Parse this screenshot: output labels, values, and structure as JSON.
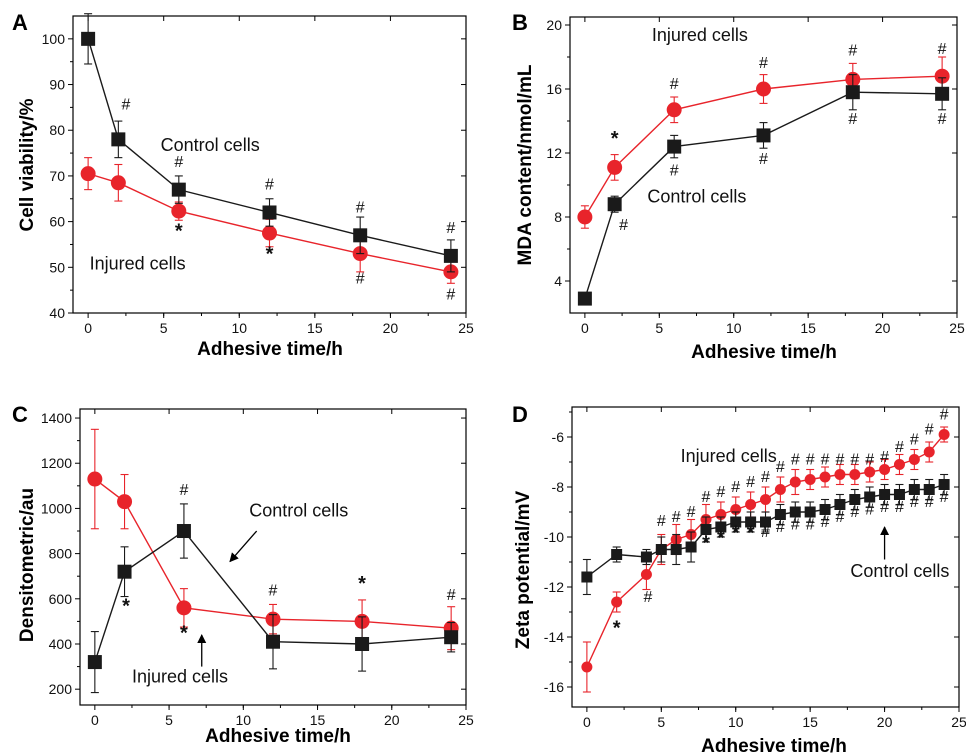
{
  "colors": {
    "control": "#1a1a1a",
    "injured": "#e8242b"
  },
  "chart_data": [
    {
      "panel": "A",
      "type": "line",
      "xlabel": "Adhesive time/h",
      "ylabel": "Cell viability/%",
      "xlim": [
        -1,
        25
      ],
      "ylim": [
        40,
        105
      ],
      "xticks": [
        0,
        5,
        10,
        15,
        20,
        25
      ],
      "yticks": [
        40,
        50,
        60,
        70,
        80,
        90,
        100
      ],
      "series": [
        {
          "name": "Control cells",
          "key": "control",
          "marker": "square",
          "x": [
            0,
            2,
            6,
            12,
            18,
            24
          ],
          "y": [
            100,
            78,
            67,
            62,
            57,
            52.5
          ],
          "err": [
            5.5,
            4,
            3,
            3,
            4,
            3.5
          ]
        },
        {
          "name": "Injured cells",
          "key": "injured",
          "marker": "circle",
          "x": [
            0,
            2,
            6,
            12,
            18,
            24
          ],
          "y": [
            70.5,
            68.5,
            62.3,
            57.5,
            53,
            49
          ],
          "err": [
            3.5,
            4,
            2,
            3,
            4,
            2.5
          ]
        }
      ],
      "annotations": [
        {
          "text": "#",
          "x": 2.5,
          "y": 84.5,
          "kind": "hash"
        },
        {
          "text": "#",
          "x": 6,
          "y": 72,
          "kind": "hash"
        },
        {
          "text": "#",
          "x": 12,
          "y": 67,
          "kind": "hash"
        },
        {
          "text": "#",
          "x": 18,
          "y": 62,
          "kind": "hash"
        },
        {
          "text": "#",
          "x": 24,
          "y": 57.5,
          "kind": "hash"
        },
        {
          "text": "*",
          "x": 6,
          "y": 56.5,
          "kind": "star"
        },
        {
          "text": "*",
          "x": 12,
          "y": 51.5,
          "kind": "star"
        },
        {
          "text": "#",
          "x": 18,
          "y": 46.5,
          "kind": "hash"
        },
        {
          "text": "#",
          "x": 24,
          "y": 43,
          "kind": "hash"
        }
      ],
      "labels": [
        {
          "text": "Control cells",
          "x": 4.8,
          "y": 75.5
        },
        {
          "text": "Injured cells",
          "x": 0.1,
          "y": 49.5
        }
      ]
    },
    {
      "panel": "B",
      "type": "line",
      "xlabel": "Adhesive time/h",
      "ylabel": "MDA content/nmol/mL",
      "xlim": [
        -1,
        25
      ],
      "ylim": [
        2,
        20.5
      ],
      "xticks": [
        0,
        5,
        10,
        15,
        20,
        25
      ],
      "yticks": [
        4,
        8,
        12,
        16,
        20
      ],
      "series": [
        {
          "name": "Control cells",
          "key": "control",
          "marker": "square",
          "x": [
            0,
            2,
            6,
            12,
            18,
            24
          ],
          "y": [
            2.9,
            8.8,
            12.4,
            13.1,
            15.8,
            15.7
          ],
          "err": [
            0.2,
            0.5,
            0.7,
            0.8,
            1.1,
            1.0
          ]
        },
        {
          "name": "Injured cells",
          "key": "injured",
          "marker": "circle",
          "x": [
            0,
            2,
            6,
            12,
            18,
            24
          ],
          "y": [
            8.0,
            11.1,
            14.7,
            16.0,
            16.6,
            16.8
          ],
          "err": [
            0.7,
            0.8,
            0.8,
            0.9,
            1.0,
            1.2
          ]
        }
      ],
      "annotations": [
        {
          "text": "*",
          "x": 2,
          "y": 12.5,
          "kind": "star"
        },
        {
          "text": "#",
          "x": 6,
          "y": 16.0,
          "kind": "hash"
        },
        {
          "text": "#",
          "x": 12,
          "y": 17.3,
          "kind": "hash"
        },
        {
          "text": "#",
          "x": 18,
          "y": 18.1,
          "kind": "hash"
        },
        {
          "text": "#",
          "x": 24,
          "y": 18.2,
          "kind": "hash"
        },
        {
          "text": "#",
          "x": 2.6,
          "y": 7.2,
          "kind": "hash"
        },
        {
          "text": "#",
          "x": 6,
          "y": 10.6,
          "kind": "hash"
        },
        {
          "text": "#",
          "x": 12,
          "y": 11.3,
          "kind": "hash"
        },
        {
          "text": "#",
          "x": 18,
          "y": 13.8,
          "kind": "hash"
        },
        {
          "text": "#",
          "x": 24,
          "y": 13.8,
          "kind": "hash"
        }
      ],
      "labels": [
        {
          "text": "Injured cells",
          "x": 4.5,
          "y": 19.0
        },
        {
          "text": "Control cells",
          "x": 4.2,
          "y": 8.9
        }
      ]
    },
    {
      "panel": "C",
      "type": "line",
      "xlabel": "Adhesive time/h",
      "ylabel": "Densitometric/au",
      "xlim": [
        -1,
        25
      ],
      "ylim": [
        130,
        1440
      ],
      "xticks": [
        0,
        5,
        10,
        15,
        20,
        25
      ],
      "yticks": [
        200,
        400,
        600,
        800,
        1000,
        1200,
        1400
      ],
      "series": [
        {
          "name": "Control cells",
          "key": "control",
          "marker": "square",
          "x": [
            0,
            2,
            6,
            12,
            18,
            24
          ],
          "y": [
            320,
            720,
            900,
            410,
            400,
            430
          ],
          "err": [
            135,
            110,
            120,
            120,
            120,
            65
          ]
        },
        {
          "name": "Injured cells",
          "key": "injured",
          "marker": "circle",
          "x": [
            0,
            2,
            6,
            12,
            18,
            24
          ],
          "y": [
            1130,
            1030,
            560,
            510,
            500,
            470
          ],
          "err": [
            220,
            120,
            85,
            65,
            95,
            95
          ]
        }
      ],
      "annotations": [
        {
          "text": "*",
          "x": 2.1,
          "y": 540,
          "kind": "star"
        },
        {
          "text": "#",
          "x": 6,
          "y": 1060,
          "kind": "hash"
        },
        {
          "text": "*",
          "x": 6,
          "y": 420,
          "kind": "star"
        },
        {
          "text": "#",
          "x": 12,
          "y": 615,
          "kind": "hash"
        },
        {
          "text": "*",
          "x": 18,
          "y": 640,
          "kind": "star"
        },
        {
          "text": "#",
          "x": 24,
          "y": 595,
          "kind": "hash"
        }
      ],
      "labels": [
        {
          "text": "Control cells",
          "x": 10.4,
          "y": 965
        },
        {
          "text": "Injured cells",
          "x": 2.5,
          "y": 230
        }
      ],
      "arrows": [
        {
          "from": [
            10.9,
            900
          ],
          "to": [
            9.1,
            765
          ]
        },
        {
          "from": [
            7.2,
            300
          ],
          "to": [
            7.2,
            440
          ]
        }
      ]
    },
    {
      "panel": "D",
      "type": "line",
      "xlabel": "Adhesive time/h",
      "ylabel": "Zeta potential/mV",
      "xlim": [
        -1,
        25
      ],
      "ylim": [
        -16.8,
        -4.8
      ],
      "xticks": [
        0,
        5,
        10,
        15,
        20,
        25
      ],
      "yticks": [
        -16,
        -14,
        -12,
        -10,
        -8,
        -6
      ],
      "series": [
        {
          "name": "Control cells",
          "key": "control",
          "marker": "square",
          "x": [
            0,
            2,
            4,
            5,
            6,
            7,
            8,
            9,
            10,
            11,
            12,
            13,
            14,
            15,
            16,
            17,
            18,
            19,
            20,
            21,
            22,
            23,
            24
          ],
          "y": [
            -11.6,
            -10.7,
            -10.8,
            -10.5,
            -10.5,
            -10.4,
            -9.7,
            -9.6,
            -9.4,
            -9.4,
            -9.4,
            -9.1,
            -9.0,
            -9.0,
            -8.9,
            -8.7,
            -8.5,
            -8.4,
            -8.3,
            -8.3,
            -8.1,
            -8.1,
            -7.9
          ],
          "err": [
            0.7,
            0.3,
            0.3,
            0.5,
            0.6,
            0.6,
            0.5,
            0.4,
            0.4,
            0.4,
            0.4,
            0.4,
            0.4,
            0.4,
            0.4,
            0.4,
            0.4,
            0.4,
            0.4,
            0.4,
            0.4,
            0.4,
            0.4
          ]
        },
        {
          "name": "Injured cells",
          "key": "injured",
          "marker": "circle",
          "x": [
            0,
            2,
            4,
            5,
            6,
            7,
            8,
            9,
            10,
            11,
            12,
            13,
            14,
            15,
            16,
            17,
            18,
            19,
            20,
            21,
            22,
            23,
            24
          ],
          "y": [
            -15.2,
            -12.6,
            -11.5,
            -10.5,
            -10.1,
            -9.9,
            -9.3,
            -9.1,
            -8.9,
            -8.7,
            -8.5,
            -8.1,
            -7.8,
            -7.7,
            -7.6,
            -7.5,
            -7.5,
            -7.4,
            -7.3,
            -7.1,
            -6.9,
            -6.6,
            -5.9
          ],
          "err": [
            1.0,
            0.4,
            0.6,
            0.6,
            0.6,
            0.6,
            0.6,
            0.5,
            0.5,
            0.5,
            0.5,
            0.5,
            0.5,
            0.4,
            0.4,
            0.4,
            0.4,
            0.4,
            0.4,
            0.4,
            0.4,
            0.4,
            0.3
          ]
        }
      ],
      "annotations": [
        {
          "text": "*",
          "x": 2,
          "y": -13.9,
          "kind": "star"
        },
        {
          "text": "#",
          "x": 4.1,
          "y": -12.6,
          "kind": "hash"
        },
        {
          "text": "#",
          "x": 5,
          "y": -9.55,
          "kind": "hash"
        },
        {
          "text": "#",
          "x": 6,
          "y": -9.4,
          "kind": "hash"
        },
        {
          "text": "#",
          "x": 7,
          "y": -9.2,
          "kind": "hash"
        },
        {
          "text": "#",
          "x": 8,
          "y": -8.6,
          "kind": "hash"
        },
        {
          "text": "#",
          "x": 9,
          "y": -8.4,
          "kind": "hash"
        },
        {
          "text": "#",
          "x": 10,
          "y": -8.2,
          "kind": "hash"
        },
        {
          "text": "#",
          "x": 11,
          "y": -8.0,
          "kind": "hash"
        },
        {
          "text": "#",
          "x": 12,
          "y": -7.8,
          "kind": "hash"
        },
        {
          "text": "#",
          "x": 13,
          "y": -7.4,
          "kind": "hash"
        },
        {
          "text": "#",
          "x": 14,
          "y": -7.1,
          "kind": "hash"
        },
        {
          "text": "#",
          "x": 15,
          "y": -7.1,
          "kind": "hash"
        },
        {
          "text": "#",
          "x": 16,
          "y": -7.1,
          "kind": "hash"
        },
        {
          "text": "#",
          "x": 17,
          "y": -7.1,
          "kind": "hash"
        },
        {
          "text": "#",
          "x": 18,
          "y": -7.1,
          "kind": "hash"
        },
        {
          "text": "#",
          "x": 19,
          "y": -7.1,
          "kind": "hash"
        },
        {
          "text": "#",
          "x": 20,
          "y": -7.0,
          "kind": "hash"
        },
        {
          "text": "#",
          "x": 21,
          "y": -6.6,
          "kind": "hash"
        },
        {
          "text": "#",
          "x": 22,
          "y": -6.3,
          "kind": "hash"
        },
        {
          "text": "#",
          "x": 23,
          "y": -5.9,
          "kind": "hash"
        },
        {
          "text": "#",
          "x": 24,
          "y": -5.3,
          "kind": "hash"
        },
        {
          "text": "*",
          "x": 8,
          "y": -10.5,
          "kind": "star"
        },
        {
          "text": "*",
          "x": 9,
          "y": -10.3,
          "kind": "star"
        },
        {
          "text": "*",
          "x": 10,
          "y": -10.1,
          "kind": "star"
        },
        {
          "text": "*",
          "x": 11,
          "y": -10.1,
          "kind": "star"
        },
        {
          "text": "#",
          "x": 12,
          "y": -10.0,
          "kind": "hash"
        },
        {
          "text": "#",
          "x": 13,
          "y": -9.8,
          "kind": "hash"
        },
        {
          "text": "#",
          "x": 14,
          "y": -9.7,
          "kind": "hash"
        },
        {
          "text": "#",
          "x": 15,
          "y": -9.7,
          "kind": "hash"
        },
        {
          "text": "#",
          "x": 16,
          "y": -9.6,
          "kind": "hash"
        },
        {
          "text": "#",
          "x": 17,
          "y": -9.4,
          "kind": "hash"
        },
        {
          "text": "#",
          "x": 18,
          "y": -9.2,
          "kind": "hash"
        },
        {
          "text": "#",
          "x": 19,
          "y": -9.1,
          "kind": "hash"
        },
        {
          "text": "#",
          "x": 20,
          "y": -9.0,
          "kind": "hash"
        },
        {
          "text": "#",
          "x": 21,
          "y": -9.0,
          "kind": "hash"
        },
        {
          "text": "#",
          "x": 22,
          "y": -8.8,
          "kind": "hash"
        },
        {
          "text": "#",
          "x": 23,
          "y": -8.8,
          "kind": "hash"
        },
        {
          "text": "#",
          "x": 24,
          "y": -8.6,
          "kind": "hash"
        }
      ],
      "labels": [
        {
          "text": "Injured cells",
          "x": 6.3,
          "y": -7.0
        },
        {
          "text": "Control cells",
          "x": 17.7,
          "y": -11.6
        }
      ],
      "arrows": [
        {
          "from": [
            20,
            -10.9
          ],
          "to": [
            20,
            -9.6
          ]
        }
      ]
    }
  ]
}
